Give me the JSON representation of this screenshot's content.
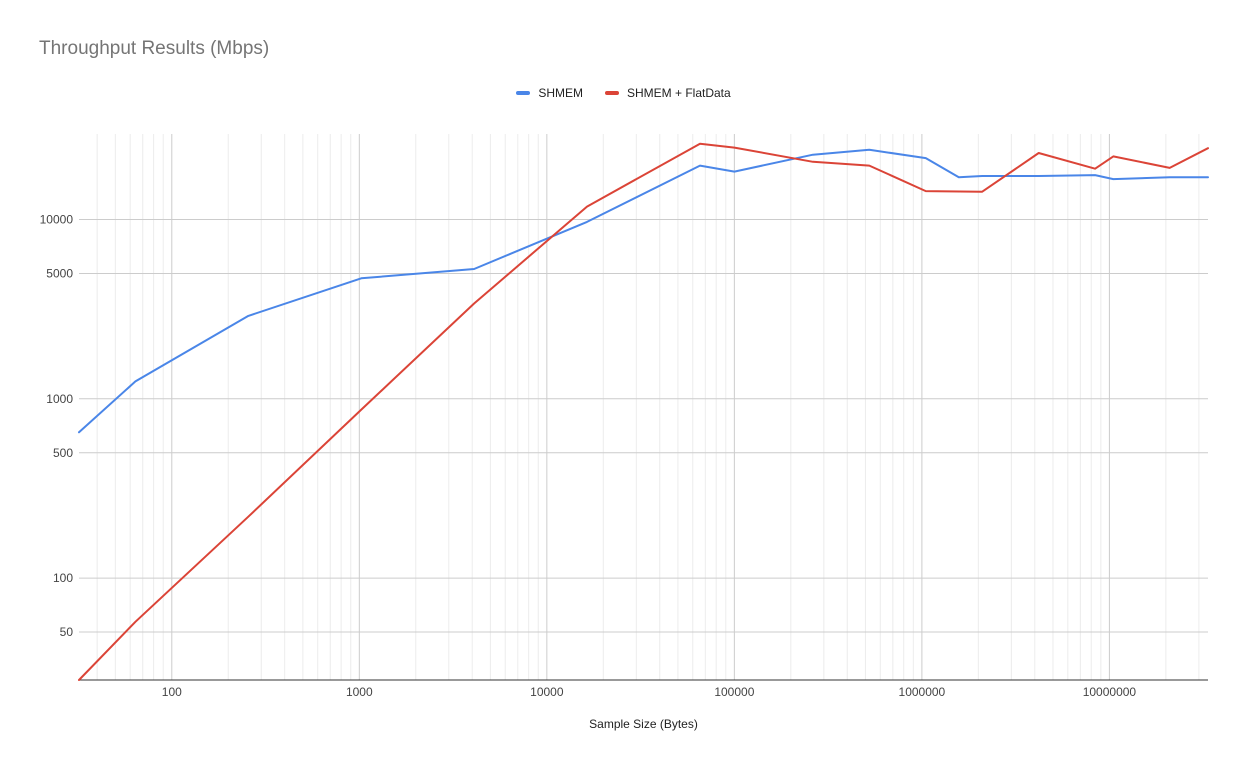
{
  "chart_data": {
    "type": "line",
    "title": "Throughput Results (Mbps)",
    "xlabel": "Sample Size (Bytes)",
    "ylabel": "",
    "x_scale": "log",
    "y_scale": "log",
    "xlim": [
      32,
      33554432
    ],
    "ylim": [
      27,
      30000
    ],
    "x_ticks": [
      100,
      1000,
      10000,
      100000,
      1000000,
      10000000
    ],
    "x_tick_labels": [
      "100",
      "1000",
      "10000",
      "100000",
      "1000000",
      "10000000"
    ],
    "y_ticks": [
      50,
      100,
      500,
      1000,
      5000,
      10000
    ],
    "y_tick_labels": [
      "50",
      "100",
      "500",
      "1000",
      "5000",
      "10000"
    ],
    "grid": true,
    "legend_position": "top",
    "series": [
      {
        "name": "SHMEM",
        "color": "#4a86e8",
        "x": [
          32,
          64,
          256,
          1024,
          4096,
          16384,
          65536,
          100000,
          262144,
          524288,
          1048576,
          1572864,
          2097152,
          4194304,
          8388608,
          10485760,
          20971520,
          33554432
        ],
        "y": [
          650,
          1250,
          2900,
          4700,
          5300,
          9700,
          20000,
          18500,
          23000,
          24500,
          22000,
          17200,
          17500,
          17500,
          17700,
          16800,
          17200,
          17200
        ]
      },
      {
        "name": "SHMEM + FlatData",
        "color": "#db4437",
        "x": [
          32,
          64,
          256,
          1024,
          4096,
          16384,
          65536,
          100000,
          262144,
          524288,
          1048576,
          2097152,
          4194304,
          8388608,
          10485760,
          20971520,
          33554432
        ],
        "y": [
          27,
          57,
          220,
          870,
          3400,
          11800,
          26500,
          25200,
          21000,
          20000,
          14400,
          14300,
          23500,
          19200,
          22500,
          19400,
          25000
        ]
      }
    ]
  }
}
